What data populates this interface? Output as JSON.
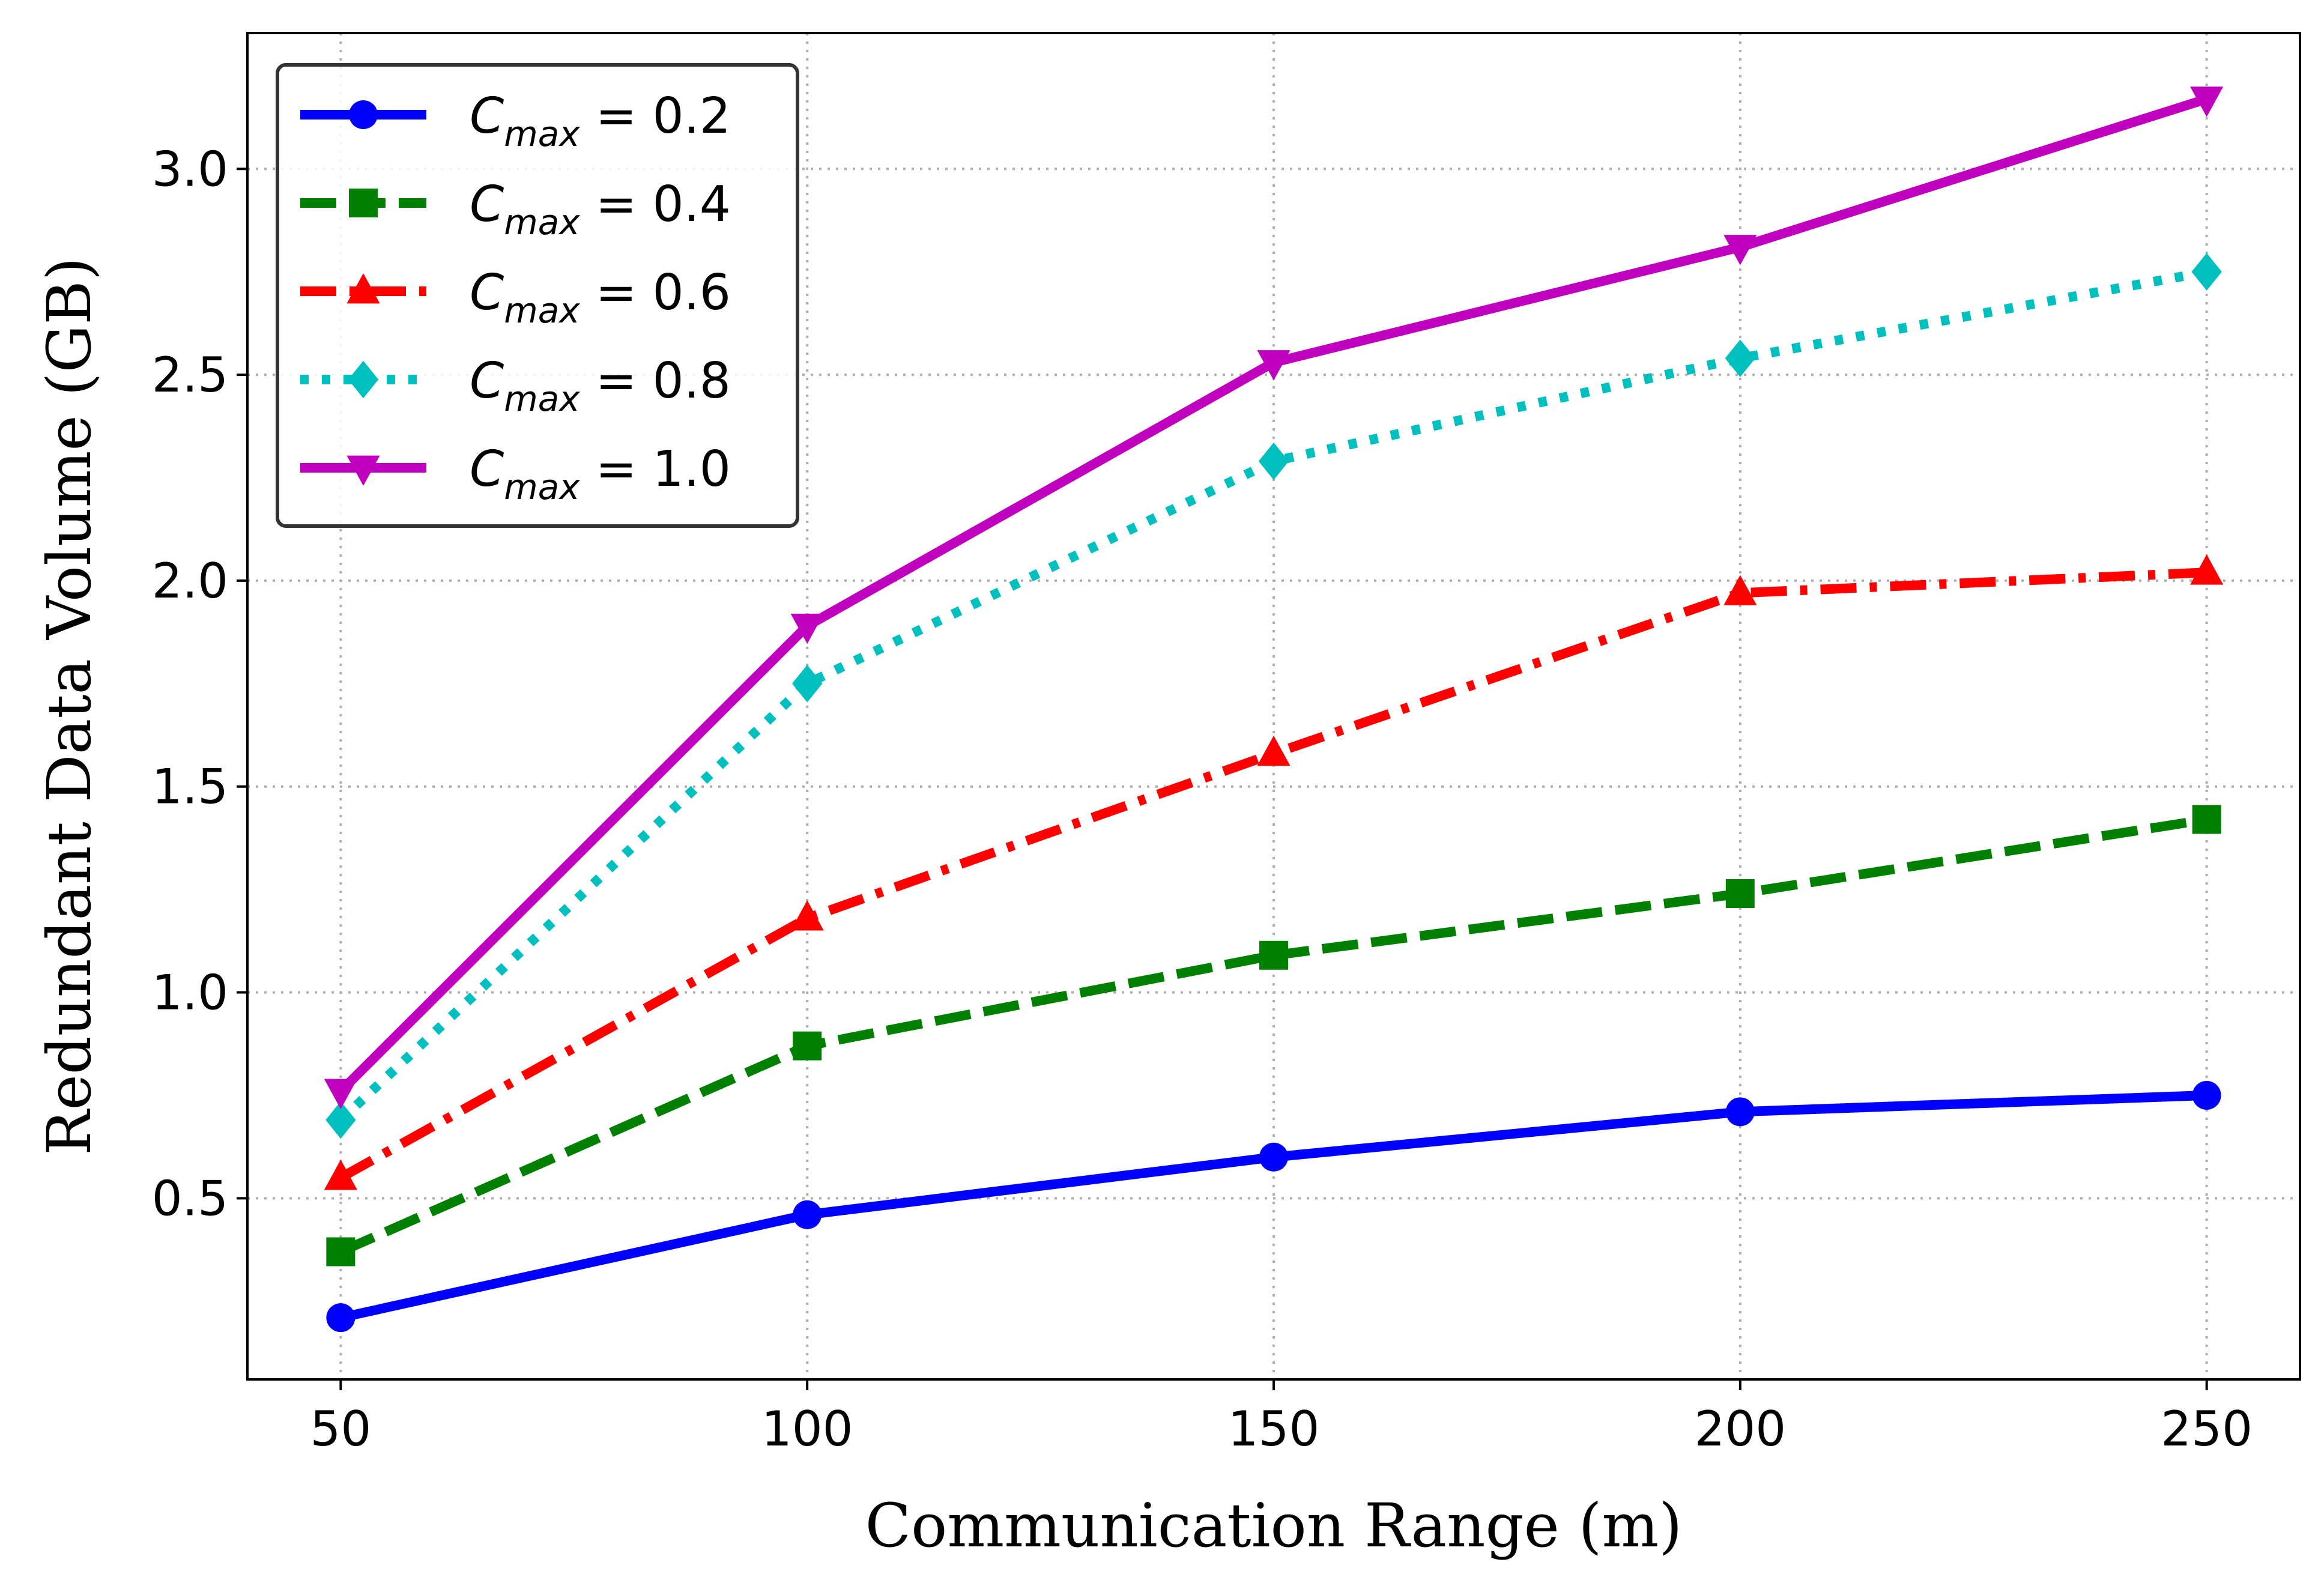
{
  "chart_data": {
    "type": "line",
    "xlabel": "Communication Range (m)",
    "ylabel": "Redundant Data Volume (GB)",
    "x": [
      50,
      100,
      150,
      200,
      250
    ],
    "xlim": [
      40,
      260
    ],
    "ylim": [
      0.06,
      3.33
    ],
    "xticks": [
      "50",
      "100",
      "150",
      "200",
      "250"
    ],
    "yticks": [
      "0.5",
      "1.0",
      "1.5",
      "2.0",
      "2.5",
      "3.0"
    ],
    "grid": true,
    "legend_position": "upper-left",
    "series": [
      {
        "name": "C_max = 0.2",
        "legend_main": "C",
        "legend_sub": "max",
        "legend_value": " = 0.2",
        "color": "#0000ff",
        "marker": "circle",
        "dash": "solid",
        "values": [
          0.21,
          0.46,
          0.6,
          0.71,
          0.75
        ]
      },
      {
        "name": "C_max = 0.4",
        "legend_main": "C",
        "legend_sub": "max",
        "legend_value": " = 0.4",
        "color": "#008000",
        "marker": "square",
        "dash": "dashed",
        "values": [
          0.37,
          0.87,
          1.09,
          1.24,
          1.42
        ]
      },
      {
        "name": "C_max = 0.6",
        "legend_main": "C",
        "legend_sub": "max",
        "legend_value": " = 0.6",
        "color": "#ff0000",
        "marker": "triangle-up",
        "dash": "dashdot",
        "values": [
          0.55,
          1.18,
          1.58,
          1.97,
          2.02
        ]
      },
      {
        "name": "C_max = 0.8",
        "legend_main": "C",
        "legend_sub": "max",
        "legend_value": " = 0.8",
        "color": "#00bfbf",
        "marker": "diamond",
        "dash": "dotted",
        "values": [
          0.69,
          1.75,
          2.29,
          2.54,
          2.75
        ]
      },
      {
        "name": "C_max = 1.0",
        "legend_main": "C",
        "legend_sub": "max",
        "legend_value": " = 1.0",
        "color": "#bf00bf",
        "marker": "triangle-down",
        "dash": "solid",
        "values": [
          0.76,
          1.89,
          2.53,
          2.81,
          3.17
        ]
      }
    ]
  }
}
